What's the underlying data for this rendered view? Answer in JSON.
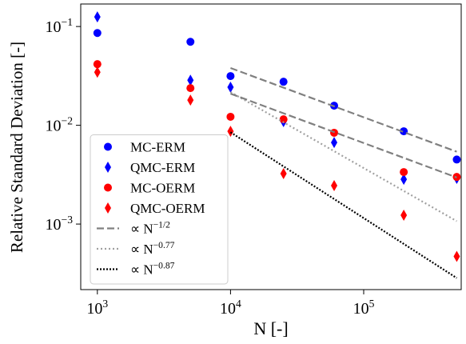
{
  "chart_data": {
    "type": "scatter",
    "xlabel": "N [-]",
    "ylabel": "Relative Standard Deviation [-]",
    "xscale": "log",
    "yscale": "log",
    "xlim": [
      750,
      540000
    ],
    "ylim": [
      0.000217,
      0.169
    ],
    "xticks": [
      {
        "value": 1000,
        "label": "10^3"
      },
      {
        "value": 10000,
        "label": "10^4"
      },
      {
        "value": 100000,
        "label": "10^5"
      }
    ],
    "yticks": [
      {
        "value": 0.1,
        "label": "10^−1"
      },
      {
        "value": 0.01,
        "label": "10^−2"
      },
      {
        "value": 0.001,
        "label": "10^−3"
      }
    ],
    "legend": "lower left",
    "series": [
      {
        "name": "MC-ERM",
        "color": "#0000ff",
        "marker": "circle",
        "x": [
          1000,
          5000,
          10000,
          25000,
          60000,
          200000,
          500000
        ],
        "values": [
          0.086,
          0.07,
          0.0315,
          0.0276,
          0.0158,
          0.0087,
          0.0045
        ]
      },
      {
        "name": "QMC-ERM",
        "color": "#0000ff",
        "marker": "diamond",
        "x": [
          1000,
          5000,
          10000,
          25000,
          60000,
          200000,
          500000
        ],
        "values": [
          0.125,
          0.0286,
          0.0243,
          0.0109,
          0.0067,
          0.00284,
          0.0029
        ]
      },
      {
        "name": "MC-OERM",
        "color": "#ff0000",
        "marker": "circle",
        "x": [
          1000,
          5000,
          10000,
          25000,
          60000,
          200000,
          500000
        ],
        "values": [
          0.0416,
          0.0238,
          0.0122,
          0.0115,
          0.0084,
          0.00336,
          0.003
        ]
      },
      {
        "name": "QMC-OERM",
        "color": "#ff0000",
        "marker": "diamond",
        "x": [
          1000,
          5000,
          10000,
          25000,
          60000,
          200000,
          500000
        ],
        "values": [
          0.0345,
          0.018,
          0.0087,
          0.00324,
          0.00245,
          0.00123,
          0.00047
        ]
      },
      {
        "name": "∝ N^−1/2",
        "color": "#808080",
        "line": "dashed",
        "x": [
          10000,
          500000
        ],
        "values": [
          0.038,
          0.0054
        ]
      },
      {
        "name": "∝ N^−0.77",
        "color": "#a0a0a0",
        "line": "dotted",
        "x": [
          10000,
          500000
        ],
        "values": [
          0.0217,
          0.00107
        ]
      },
      {
        "name": "∝ N^−0.87",
        "color": "#000000",
        "line": "dotted-dense",
        "x": [
          10000,
          500000
        ],
        "values": [
          0.0085,
          0.000284
        ]
      },
      {
        "color": "#808080",
        "line": "dashed",
        "legend": false,
        "x": [
          10000,
          500000
        ],
        "values": [
          0.0209,
          0.00296
        ]
      }
    ]
  }
}
